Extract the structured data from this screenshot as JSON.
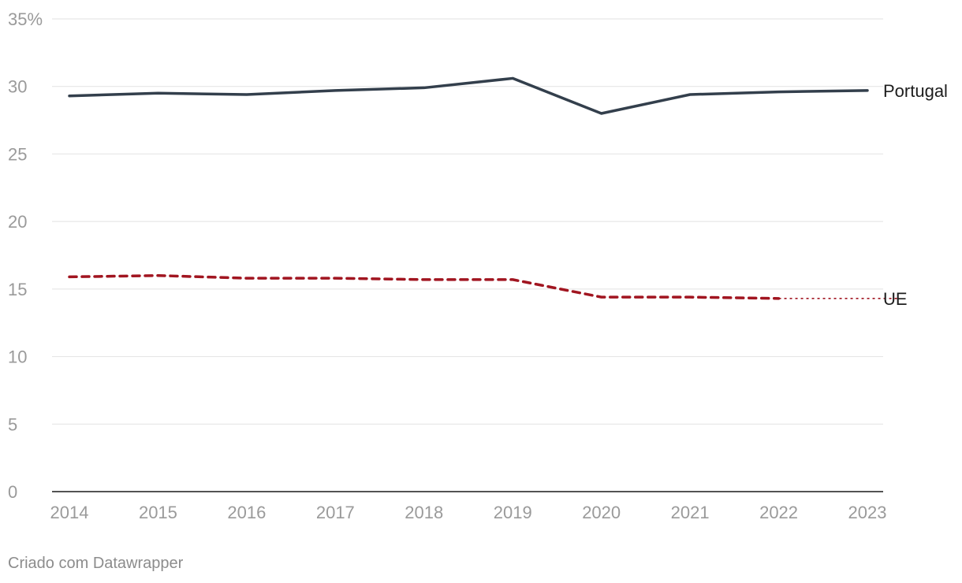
{
  "chart_data": {
    "type": "line",
    "x": [
      "2014",
      "2015",
      "2016",
      "2017",
      "2018",
      "2019",
      "2020",
      "2021",
      "2022",
      "2023"
    ],
    "series": [
      {
        "name": "Portugal",
        "color": "#333f4c",
        "style": "solid",
        "values": [
          29.3,
          29.5,
          29.4,
          29.7,
          29.9,
          30.6,
          28.0,
          29.4,
          29.6,
          29.7
        ]
      },
      {
        "name": "UE",
        "color": "#a11520",
        "style": "dashed",
        "values": [
          15.9,
          16.0,
          15.8,
          15.8,
          15.7,
          15.7,
          14.4,
          14.4,
          14.3,
          null
        ],
        "projection": {
          "from": "2022",
          "to": "2023",
          "value": 14.3,
          "style": "dotted"
        }
      }
    ],
    "ylim": [
      0,
      35
    ],
    "y_ticks": [
      0,
      5,
      10,
      15,
      20,
      25,
      30,
      35
    ],
    "y_tick_labels": [
      "0",
      "5",
      "10",
      "15",
      "20",
      "25",
      "30",
      "35%"
    ],
    "grid": true,
    "legend": "inline-right"
  },
  "footer": {
    "note": "Criado com Datawrapper"
  }
}
